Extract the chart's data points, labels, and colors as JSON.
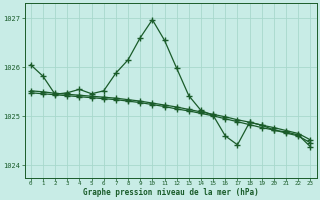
{
  "background_color": "#c8ece6",
  "grid_color": "#a8d8cc",
  "line_color": "#1a5c2a",
  "xlabel": "Graphe pression niveau de la mer (hPa)",
  "xlim": [
    -0.5,
    23.5
  ],
  "ylim": [
    1023.75,
    1027.3
  ],
  "yticks": [
    1024,
    1025,
    1026,
    1027
  ],
  "xticks": [
    0,
    1,
    2,
    3,
    4,
    5,
    6,
    7,
    8,
    9,
    10,
    11,
    12,
    13,
    14,
    15,
    16,
    17,
    18,
    19,
    20,
    21,
    22,
    23
  ],
  "line1_y": [
    1026.05,
    1025.82,
    1025.45,
    1025.48,
    1025.55,
    1025.46,
    1025.52,
    1025.88,
    1026.15,
    1026.6,
    1026.97,
    1026.55,
    1025.98,
    1025.42,
    1025.12,
    1025.02,
    1024.6,
    1024.42,
    1024.88,
    1024.82,
    1024.72,
    1024.68,
    1024.62,
    1024.38
  ],
  "line2_y": [
    1025.52,
    1025.5,
    1025.47,
    1025.45,
    1025.43,
    1025.41,
    1025.39,
    1025.37,
    1025.34,
    1025.31,
    1025.27,
    1025.23,
    1025.19,
    1025.14,
    1025.09,
    1025.04,
    1024.99,
    1024.93,
    1024.88,
    1024.82,
    1024.77,
    1024.71,
    1024.65,
    1024.52
  ],
  "line3_y": [
    1025.48,
    1025.46,
    1025.44,
    1025.42,
    1025.4,
    1025.38,
    1025.36,
    1025.34,
    1025.31,
    1025.28,
    1025.24,
    1025.2,
    1025.15,
    1025.11,
    1025.06,
    1025.01,
    1024.95,
    1024.89,
    1024.83,
    1024.77,
    1024.72,
    1024.66,
    1024.6,
    1024.46
  ]
}
